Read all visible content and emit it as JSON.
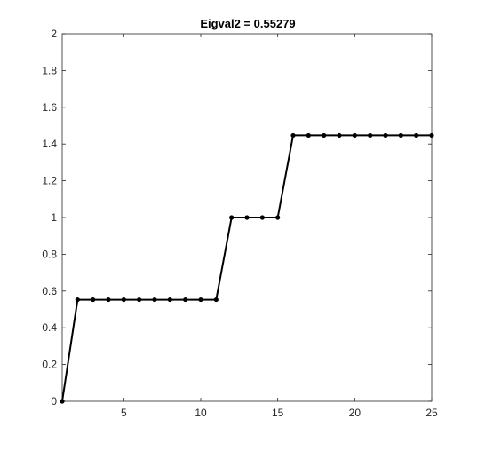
{
  "chart_data": {
    "type": "line",
    "title": "Eigval2 = 0.55279",
    "xlabel": "",
    "ylabel": "",
    "xlim": [
      1,
      25
    ],
    "ylim": [
      0,
      2
    ],
    "xticks": [
      5,
      10,
      15,
      20,
      25
    ],
    "yticks": [
      0,
      0.2,
      0.4,
      0.6,
      0.8,
      1,
      1.2,
      1.4,
      1.6,
      1.8,
      2
    ],
    "grid": false,
    "legend": "none",
    "line_color": "#000000",
    "marker": "circle",
    "series": [
      {
        "x": [
          1,
          2,
          3,
          4,
          5,
          6,
          7,
          8,
          9,
          10,
          11,
          12,
          13,
          14,
          15,
          16,
          17,
          18,
          19,
          20,
          21,
          22,
          23,
          24,
          25
        ],
        "y": [
          0,
          0.55279,
          0.55279,
          0.55279,
          0.55279,
          0.55279,
          0.55279,
          0.55279,
          0.55279,
          0.55279,
          0.55279,
          1,
          1,
          1,
          1,
          1.44721,
          1.44721,
          1.44721,
          1.44721,
          1.44721,
          1.44721,
          1.44721,
          1.44721,
          1.44721,
          1.44721
        ]
      }
    ]
  }
}
